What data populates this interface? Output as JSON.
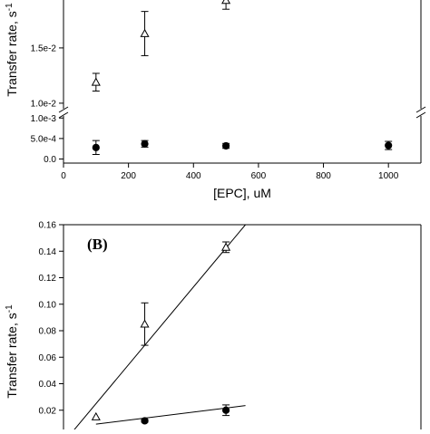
{
  "chart_data": [
    {
      "type": "scatter",
      "panel_label": "",
      "xlabel": "[EPC], uM",
      "ylabel": "Transfer rate, s-1",
      "xlim": [
        0,
        1100
      ],
      "x_ticks": [
        0,
        200,
        400,
        600,
        800,
        1000
      ],
      "x_tick_labels": [
        "0",
        "200",
        "400",
        "600",
        "800",
        "1000"
      ],
      "broken_y_axis": true,
      "upper_segment": {
        "ylim": [
          0.0095,
          0.0195
        ],
        "ticks": [
          0.01,
          0.015
        ],
        "tick_labels": [
          "1.0e-2",
          "1.5e-2"
        ]
      },
      "lower_segment": {
        "ylim": [
          -0.0001,
          0.00105
        ],
        "ticks": [
          0,
          0.0005,
          0.001
        ],
        "tick_labels": [
          "0.0",
          "5.0e-4",
          "1.0e-3"
        ]
      },
      "grid": false,
      "series": [
        {
          "marker": "open-triangle",
          "points": [
            {
              "x": 100,
              "y": 0.0119,
              "err": 0.0008
            },
            {
              "x": 250,
              "y": 0.0163,
              "err": 0.002
            },
            {
              "x": 500,
              "y": 0.0193,
              "err": 0.0008
            }
          ]
        },
        {
          "marker": "filled-circle",
          "points": [
            {
              "x": 100,
              "y": 0.00028,
              "err": 0.00017
            },
            {
              "x": 250,
              "y": 0.00037,
              "err": 8e-05
            },
            {
              "x": 500,
              "y": 0.00032,
              "err": 6e-05
            },
            {
              "x": 1000,
              "y": 0.00033,
              "err": 0.0001
            }
          ]
        }
      ]
    },
    {
      "type": "scatter",
      "panel_label": "(B)",
      "xlabel": "",
      "ylabel": "Transfer rate, s-1",
      "ylim": [
        0,
        0.16
      ],
      "y_ticks": [
        0,
        0.02,
        0.04,
        0.06,
        0.08,
        0.1,
        0.12,
        0.14,
        0.16
      ],
      "y_tick_labels": [
        "",
        "0.02",
        "0.04",
        "0.06",
        "0.08",
        "0.10",
        "0.12",
        "0.14",
        "0.16"
      ],
      "xlim": [
        0,
        1100
      ],
      "grid": false,
      "series": [
        {
          "marker": "open-triangle",
          "points": [
            {
              "x": 100,
              "y": 0.015,
              "err": 0
            },
            {
              "x": 250,
              "y": 0.085,
              "err": 0.016
            },
            {
              "x": 500,
              "y": 0.143,
              "err": 0.004
            }
          ],
          "fit_line": {
            "x": [
              15,
              560
            ],
            "y": [
              0.0,
              0.16
            ]
          }
        },
        {
          "marker": "filled-circle",
          "points": [
            {
              "x": 250,
              "y": 0.012,
              "err": 0.001
            },
            {
              "x": 500,
              "y": 0.02,
              "err": 0.004
            }
          ],
          "fit_line": {
            "x": [
              100,
              560
            ],
            "y": [
              0.0095,
              0.0235
            ]
          }
        }
      ]
    }
  ]
}
